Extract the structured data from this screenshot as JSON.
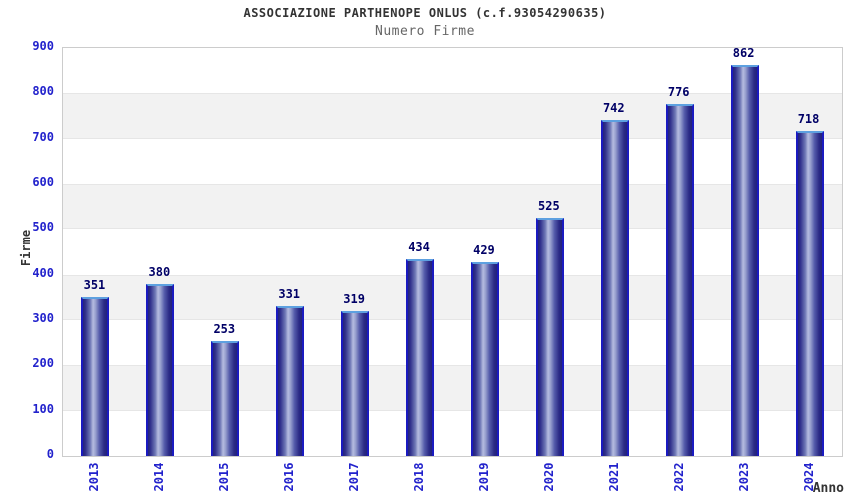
{
  "chart_data": {
    "type": "bar",
    "title": "ASSOCIAZIONE PARTHENOPE ONLUS (c.f.93054290635)",
    "subtitle": "Numero Firme",
    "xlabel": "Anno",
    "ylabel": "Firme",
    "categories": [
      "2013",
      "2014",
      "2015",
      "2016",
      "2017",
      "2018",
      "2019",
      "2020",
      "2021",
      "2022",
      "2023",
      "2024"
    ],
    "values": [
      351,
      380,
      253,
      331,
      319,
      434,
      429,
      525,
      742,
      776,
      862,
      718
    ],
    "ylim": [
      0,
      900
    ],
    "ytick_step": 100,
    "ytick_labels": [
      "0",
      "100",
      "200",
      "300",
      "400",
      "500",
      "600",
      "700",
      "800",
      "900"
    ],
    "grid": "alternating horizontal bands every 100 units",
    "legend": "none",
    "colors": {
      "bar_edge": "#1a1ac0",
      "bar_body_dark": "#23237a",
      "bar_body_highlight": "#b5bce0",
      "bar_top_cap": "#5da0e0",
      "tick_label": "#2222cc",
      "value_label": "#000066",
      "title": "#333333",
      "subtitle": "#666666",
      "band": "#f2f2f2",
      "plot_border": "#cccccc",
      "background": "#ffffff"
    }
  }
}
